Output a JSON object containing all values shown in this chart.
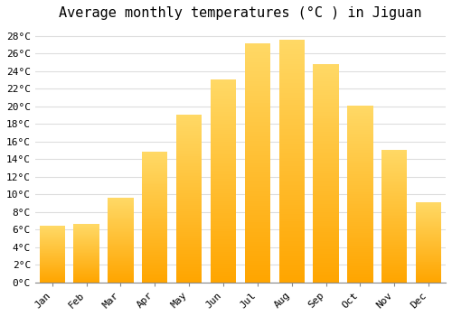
{
  "title": "Average monthly temperatures (°C ) in Jiguan",
  "months": [
    "Jan",
    "Feb",
    "Mar",
    "Apr",
    "May",
    "Jun",
    "Jul",
    "Aug",
    "Sep",
    "Oct",
    "Nov",
    "Dec"
  ],
  "values": [
    6.4,
    6.6,
    9.6,
    14.8,
    19.1,
    23.1,
    27.2,
    27.6,
    24.8,
    20.1,
    15.1,
    9.1
  ],
  "bar_color_bottom": "#FFA500",
  "bar_color_top": "#FFD966",
  "background_color": "#FFFFFF",
  "plot_bg_color": "#FFFFFF",
  "ylim": [
    0,
    29
  ],
  "title_fontsize": 11,
  "tick_fontsize": 8,
  "grid_color": "#DDDDDD",
  "font_family": "monospace"
}
